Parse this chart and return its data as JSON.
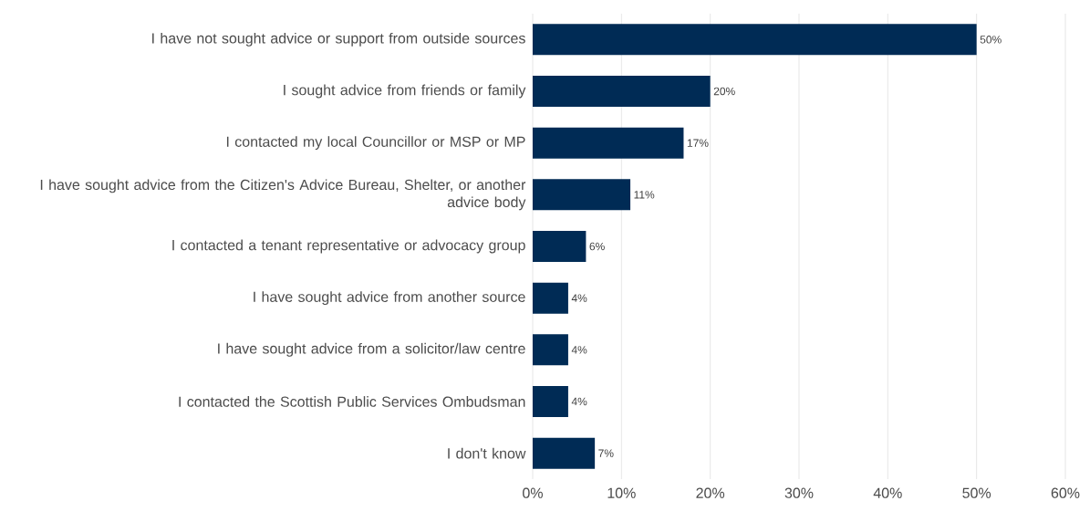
{
  "chart_data": {
    "type": "bar",
    "orientation": "horizontal",
    "categories": [
      "I have not sought advice or support from outside sources",
      "I sought advice from friends or family",
      "I contacted my local Councillor or MSP or MP",
      "I have sought advice from the Citizen's Advice Bureau, Shelter, or another advice body",
      "I contacted a tenant representative or advocacy group",
      "I have sought advice from another source",
      "I have sought advice from a solicitor/law centre",
      "I contacted the Scottish Public Services Ombudsman",
      "I don't know"
    ],
    "values": [
      50,
      20,
      17,
      11,
      6,
      4,
      4,
      4,
      7
    ],
    "value_labels": [
      "50%",
      "20%",
      "17%",
      "11%",
      "6%",
      "4%",
      "4%",
      "4%",
      "7%"
    ],
    "color": "#002b55",
    "xlim": [
      0,
      60
    ],
    "xticks": [
      {
        "value": 0,
        "label": "0%"
      },
      {
        "value": 10,
        "label": "10%"
      },
      {
        "value": 20,
        "label": "20%"
      },
      {
        "value": 30,
        "label": "30%"
      },
      {
        "value": 40,
        "label": "40%"
      },
      {
        "value": 50,
        "label": "50%"
      },
      {
        "value": 60,
        "label": "60%"
      }
    ],
    "grid": "x"
  }
}
